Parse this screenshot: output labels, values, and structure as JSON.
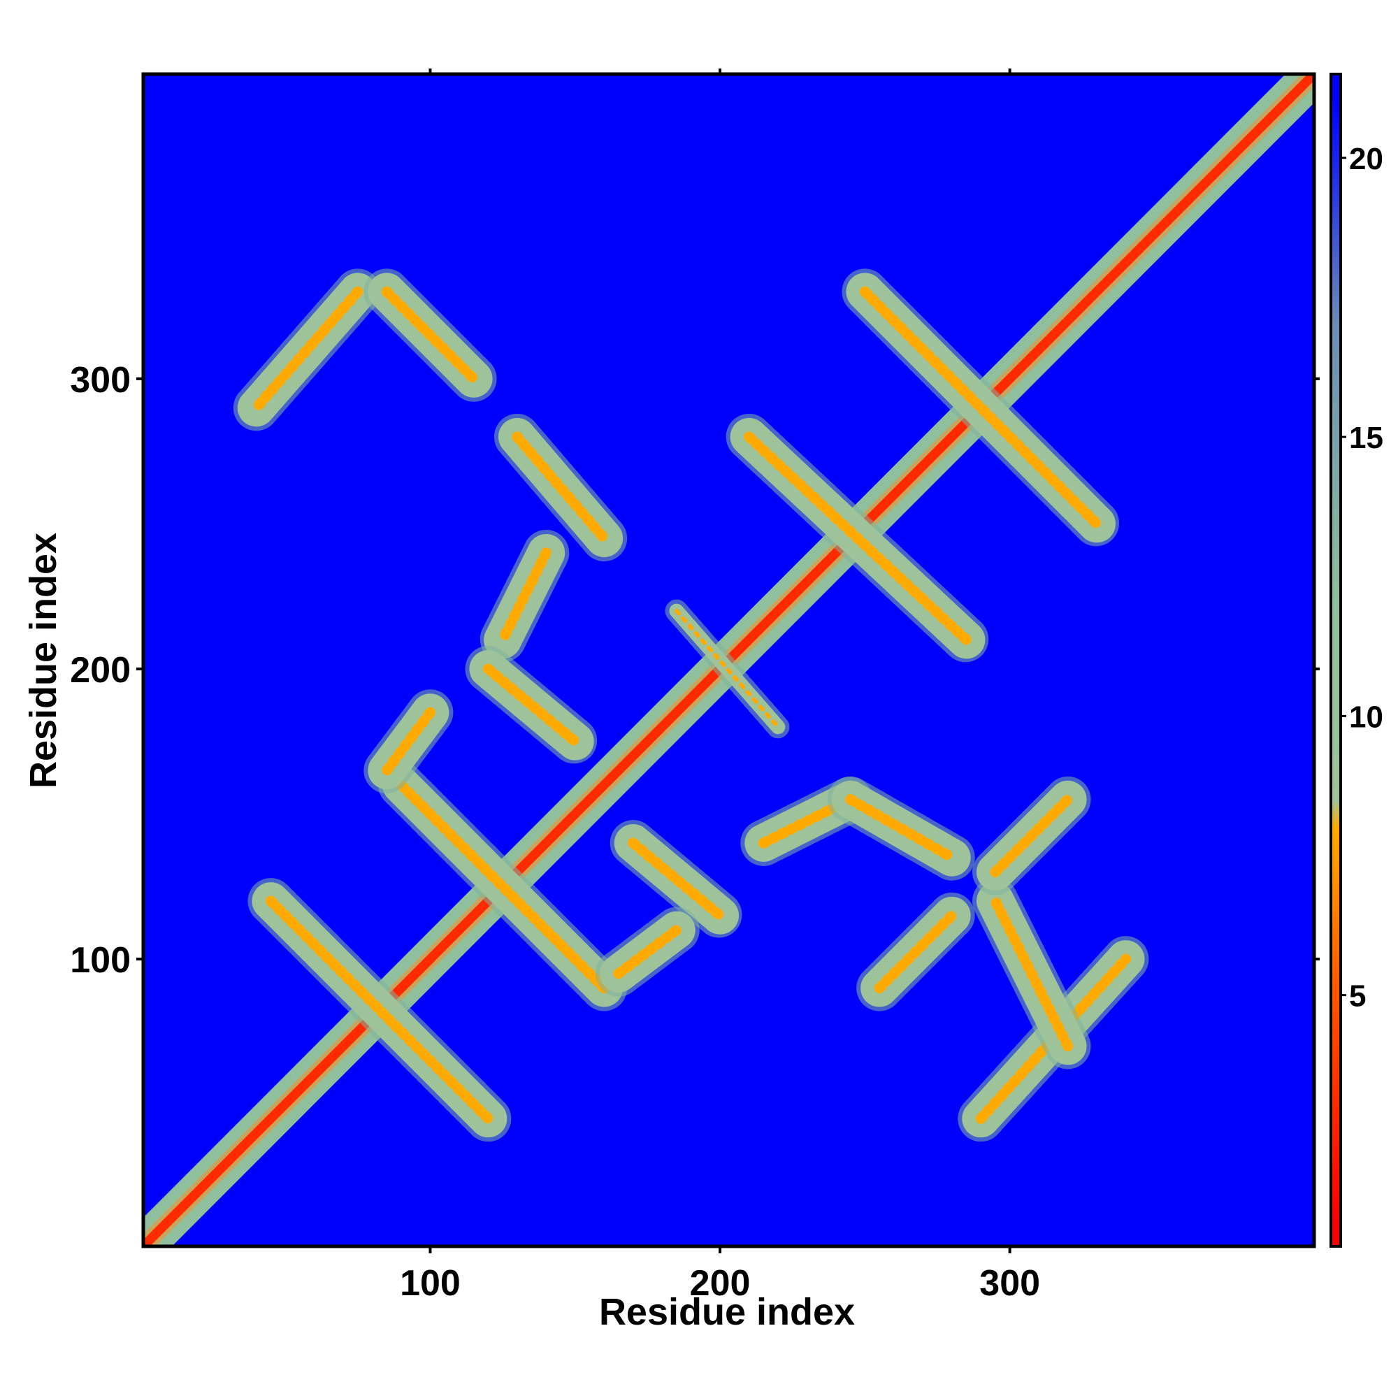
{
  "chart_data": {
    "type": "heatmap",
    "title": "",
    "xlabel": "Residue index",
    "ylabel": "Residue index",
    "xlim": [
      1,
      405
    ],
    "ylim": [
      1,
      405
    ],
    "x_ticks": [
      100,
      200,
      300
    ],
    "y_ticks": [
      100,
      200,
      300
    ],
    "colorbar": {
      "ticks": [
        5,
        10,
        15,
        20
      ],
      "range": [
        0.5,
        21.5
      ],
      "colors": [
        {
          "value": 1,
          "color": "#ff0000"
        },
        {
          "value": 5,
          "color": "#ff5500"
        },
        {
          "value": 8,
          "color": "#ffaa00"
        },
        {
          "value": 8.5,
          "color": "#9ec39a"
        },
        {
          "value": 12,
          "color": "#8fbf9c"
        },
        {
          "value": 17,
          "color": "#6b8db5"
        },
        {
          "value": 21,
          "color": "#0000ff"
        }
      ]
    },
    "background_color": "#0000ff",
    "description_bands": [
      {
        "start": [
          1,
          1
        ],
        "end": [
          405,
          405
        ],
        "kind": "main-diagonal"
      },
      {
        "start": [
          45,
          120
        ],
        "end": [
          120,
          45
        ],
        "kind": "antiparallel"
      },
      {
        "start": [
          90,
          160
        ],
        "end": [
          160,
          90
        ],
        "kind": "antiparallel"
      },
      {
        "start": [
          75,
          330
        ],
        "end": [
          40,
          290
        ],
        "kind": "parallel"
      },
      {
        "start": [
          85,
          330
        ],
        "end": [
          115,
          300
        ],
        "kind": "antiparallel"
      },
      {
        "start": [
          130,
          280
        ],
        "end": [
          160,
          245
        ],
        "kind": "antiparallel"
      },
      {
        "start": [
          140,
          240
        ],
        "end": [
          125,
          210
        ],
        "kind": "parallel"
      },
      {
        "start": [
          120,
          200
        ],
        "end": [
          150,
          175
        ],
        "kind": "antiparallel"
      },
      {
        "start": [
          100,
          185
        ],
        "end": [
          85,
          165
        ],
        "kind": "parallel"
      },
      {
        "start": [
          170,
          140
        ],
        "end": [
          200,
          115
        ],
        "kind": "antiparallel"
      },
      {
        "start": [
          165,
          95
        ],
        "end": [
          185,
          110
        ],
        "kind": "parallel"
      },
      {
        "start": [
          185,
          220
        ],
        "end": [
          220,
          180
        ],
        "kind": "cross"
      },
      {
        "start": [
          210,
          280
        ],
        "end": [
          285,
          210
        ],
        "kind": "antiparallel"
      },
      {
        "start": [
          250,
          330
        ],
        "end": [
          330,
          250
        ],
        "kind": "antiparallel"
      },
      {
        "start": [
          215,
          140
        ],
        "end": [
          245,
          155
        ],
        "kind": "parallel"
      },
      {
        "start": [
          245,
          155
        ],
        "end": [
          280,
          135
        ],
        "kind": "antiparallel"
      },
      {
        "start": [
          290,
          45
        ],
        "end": [
          340,
          100
        ],
        "kind": "parallel"
      },
      {
        "start": [
          320,
          70
        ],
        "end": [
          295,
          120
        ],
        "kind": "antiparallel"
      },
      {
        "start": [
          295,
          130
        ],
        "end": [
          320,
          155
        ],
        "kind": "parallel"
      },
      {
        "start": [
          255,
          90
        ],
        "end": [
          280,
          115
        ],
        "kind": "parallel"
      }
    ]
  }
}
